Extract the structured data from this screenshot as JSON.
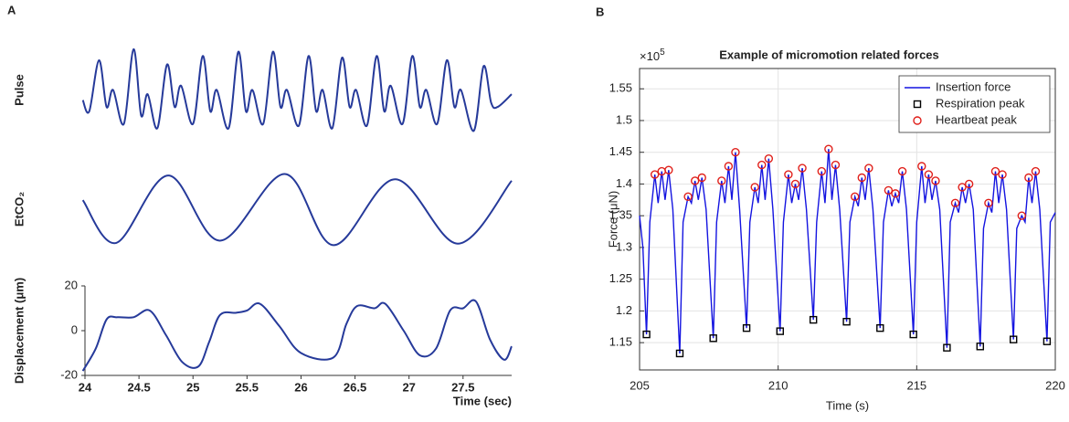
{
  "chart_data": [
    {
      "type": "line",
      "panel_label": "A",
      "ylabel": "Pulse",
      "xlim": [
        24,
        27.95
      ],
      "ylim": [
        0,
        1
      ],
      "series": [
        {
          "color": "#263a9a",
          "x": [
            23.98,
            24.04,
            24.13,
            24.2,
            24.26,
            24.36,
            24.45,
            24.52,
            24.58,
            24.67,
            24.76,
            24.83,
            24.89,
            25.0,
            25.09,
            25.16,
            25.22,
            25.33,
            25.42,
            25.49,
            25.55,
            25.65,
            25.74,
            25.81,
            25.87,
            25.98,
            26.07,
            26.14,
            26.2,
            26.29,
            26.38,
            26.45,
            26.51,
            26.61,
            26.7,
            26.77,
            26.83,
            26.94,
            27.03,
            27.1,
            27.16,
            27.26,
            27.35,
            27.42,
            27.48,
            27.6,
            27.69,
            27.76,
            27.82,
            27.95
          ],
          "values": [
            0.38,
            0.25,
            0.85,
            0.3,
            0.5,
            0.1,
            0.98,
            0.2,
            0.45,
            0.05,
            0.8,
            0.3,
            0.55,
            0.1,
            0.9,
            0.25,
            0.5,
            0.05,
            0.95,
            0.25,
            0.5,
            0.1,
            0.95,
            0.3,
            0.5,
            0.08,
            0.9,
            0.25,
            0.5,
            0.05,
            0.88,
            0.3,
            0.5,
            0.08,
            0.9,
            0.25,
            0.55,
            0.1,
            0.9,
            0.3,
            0.5,
            0.1,
            0.85,
            0.3,
            0.5,
            0.02,
            0.78,
            0.35,
            0.3,
            0.45
          ]
        }
      ]
    },
    {
      "type": "line",
      "ylabel": "EtCO₂",
      "xlim": [
        24,
        27.95
      ],
      "ylim": [
        0,
        1
      ],
      "series": [
        {
          "color": "#263a9a",
          "x": [
            23.98,
            24.29,
            24.77,
            25.25,
            25.85,
            26.3,
            26.87,
            27.45,
            27.95
          ],
          "values": [
            0.62,
            0.05,
            0.95,
            0.08,
            0.97,
            0.02,
            0.9,
            0.04,
            0.88
          ]
        }
      ]
    },
    {
      "type": "line",
      "ylabel": "Displacement (μm)",
      "xlabel": "Time (sec)",
      "xlim": [
        24,
        27.95
      ],
      "ylim": [
        -20,
        20
      ],
      "xticks": [
        24,
        24.5,
        25,
        25.5,
        26,
        26.5,
        27,
        27.5
      ],
      "yticks": [
        -20,
        0,
        20
      ],
      "axes": true,
      "series": [
        {
          "color": "#263a9a",
          "x": [
            23.98,
            24.1,
            24.2,
            24.3,
            24.45,
            24.6,
            24.75,
            24.9,
            25.05,
            25.15,
            25.25,
            25.4,
            25.5,
            25.62,
            25.8,
            26.0,
            26.3,
            26.42,
            26.52,
            26.68,
            26.78,
            26.95,
            27.1,
            27.25,
            27.38,
            27.5,
            27.62,
            27.75,
            27.88,
            27.95
          ],
          "values": [
            -18,
            -8,
            5,
            6,
            6,
            9,
            -2,
            -14,
            -16,
            -5,
            7,
            8,
            9,
            12,
            2,
            -10,
            -12,
            3,
            11,
            10,
            12,
            0,
            -11,
            -8,
            9,
            10,
            13,
            -4,
            -13,
            -7
          ]
        }
      ]
    },
    {
      "type": "line",
      "panel_label": "B",
      "title": "Example of micromotion related forces",
      "xlabel": "Time (s)",
      "ylabel": "Force (μN)",
      "y_exponent_base": "×10",
      "y_exponent": 5,
      "xlim": [
        205,
        220
      ],
      "ylim": [
        1.107,
        1.582
      ],
      "xticks": [
        205,
        210,
        215,
        220
      ],
      "yticks": [
        1.15,
        1.2,
        1.25,
        1.3,
        1.35,
        1.4,
        1.45,
        1.5,
        1.55
      ],
      "grid": true,
      "box": true,
      "legend": "upper right",
      "series": [
        {
          "name": "Insertion force",
          "color": "#1414e0",
          "mode": "line",
          "x": [
            205.0,
            205.12,
            205.25,
            205.37,
            205.55,
            205.67,
            205.8,
            205.92,
            206.05,
            206.2,
            206.45,
            206.57,
            206.75,
            206.87,
            207.0,
            207.12,
            207.25,
            207.4,
            207.66,
            207.78,
            207.96,
            208.08,
            208.21,
            208.33,
            208.46,
            208.61,
            208.86,
            208.98,
            209.16,
            209.28,
            209.41,
            209.53,
            209.66,
            209.81,
            210.07,
            210.19,
            210.37,
            210.49,
            210.62,
            210.74,
            210.87,
            211.02,
            211.27,
            211.39,
            211.57,
            211.69,
            211.82,
            211.94,
            212.07,
            212.22,
            212.47,
            212.59,
            212.77,
            212.89,
            213.02,
            213.14,
            213.27,
            213.42,
            213.68,
            213.8,
            213.98,
            214.1,
            214.23,
            214.35,
            214.48,
            214.63,
            214.88,
            215.0,
            215.18,
            215.3,
            215.43,
            215.55,
            215.68,
            215.83,
            216.09,
            216.21,
            216.39,
            216.51,
            216.64,
            216.76,
            216.89,
            217.04,
            217.29,
            217.41,
            217.59,
            217.71,
            217.84,
            217.96,
            218.09,
            218.24,
            218.49,
            218.61,
            218.79,
            218.91,
            219.04,
            219.16,
            219.29,
            219.44,
            219.7,
            219.82,
            220.0
          ],
          "values": [
            1.35,
            1.3,
            1.163,
            1.34,
            1.415,
            1.37,
            1.42,
            1.375,
            1.422,
            1.36,
            1.133,
            1.34,
            1.38,
            1.37,
            1.405,
            1.375,
            1.41,
            1.36,
            1.157,
            1.34,
            1.405,
            1.37,
            1.428,
            1.375,
            1.45,
            1.36,
            1.173,
            1.34,
            1.395,
            1.37,
            1.43,
            1.375,
            1.44,
            1.36,
            1.168,
            1.34,
            1.415,
            1.37,
            1.4,
            1.375,
            1.425,
            1.36,
            1.186,
            1.34,
            1.42,
            1.37,
            1.455,
            1.375,
            1.43,
            1.36,
            1.183,
            1.34,
            1.38,
            1.365,
            1.41,
            1.375,
            1.425,
            1.36,
            1.173,
            1.34,
            1.39,
            1.365,
            1.385,
            1.37,
            1.42,
            1.36,
            1.163,
            1.34,
            1.428,
            1.37,
            1.415,
            1.375,
            1.405,
            1.36,
            1.142,
            1.34,
            1.37,
            1.355,
            1.395,
            1.37,
            1.4,
            1.36,
            1.144,
            1.33,
            1.37,
            1.355,
            1.42,
            1.37,
            1.415,
            1.36,
            1.155,
            1.33,
            1.35,
            1.34,
            1.41,
            1.37,
            1.42,
            1.36,
            1.152,
            1.34,
            1.355
          ]
        },
        {
          "name": "Respiration peak",
          "color": "#000000",
          "mode": "marker",
          "marker": "square",
          "x": [
            205.25,
            206.45,
            207.66,
            208.86,
            210.07,
            211.27,
            212.47,
            213.68,
            214.88,
            216.09,
            217.29,
            218.49,
            219.7
          ],
          "values": [
            1.163,
            1.133,
            1.157,
            1.173,
            1.168,
            1.186,
            1.183,
            1.173,
            1.163,
            1.142,
            1.144,
            1.155,
            1.152
          ]
        },
        {
          "name": "Heartbeat peak",
          "color": "#e0201b",
          "mode": "marker",
          "marker": "circle",
          "x": [
            205.55,
            205.8,
            206.05,
            206.75,
            207.0,
            207.25,
            207.96,
            208.21,
            208.46,
            209.16,
            209.41,
            209.66,
            210.37,
            210.62,
            210.87,
            211.57,
            211.82,
            212.07,
            212.77,
            213.02,
            213.27,
            213.98,
            214.23,
            214.48,
            215.18,
            215.43,
            215.68,
            216.39,
            216.64,
            216.89,
            217.59,
            217.84,
            218.09,
            218.79,
            219.04,
            219.29
          ],
          "values": [
            1.415,
            1.42,
            1.422,
            1.38,
            1.405,
            1.41,
            1.405,
            1.428,
            1.45,
            1.395,
            1.43,
            1.44,
            1.415,
            1.4,
            1.425,
            1.42,
            1.455,
            1.43,
            1.38,
            1.41,
            1.425,
            1.39,
            1.385,
            1.42,
            1.428,
            1.415,
            1.405,
            1.37,
            1.395,
            1.4,
            1.37,
            1.42,
            1.415,
            1.35,
            1.41,
            1.42
          ]
        }
      ]
    }
  ]
}
